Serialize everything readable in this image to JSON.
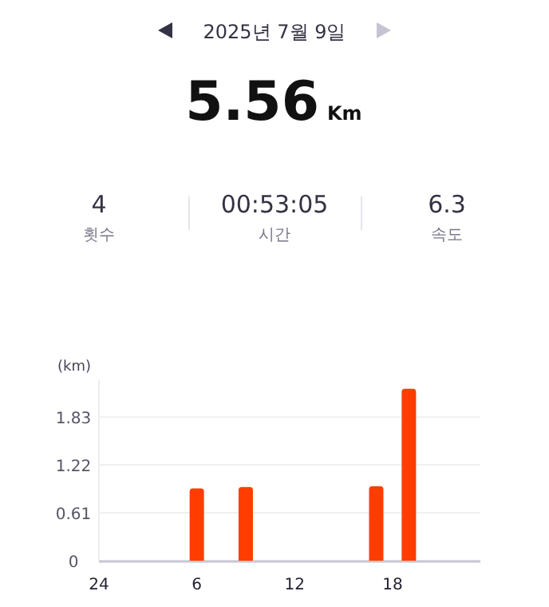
{
  "chart_data": {
    "type": "bar",
    "title": "2025년 7월 9일",
    "subtitle": "5.56",
    "annotations": [
      "Km",
      "4",
      "횟수",
      "00:53:05",
      "시간",
      "6.3",
      "속도"
    ],
    "ylabel": "(km)",
    "categories": [
      "24",
      null,
      null,
      null,
      null,
      null,
      "6",
      null,
      null,
      null,
      null,
      null,
      "12",
      null,
      null,
      null,
      null,
      null,
      "18",
      null,
      null,
      null,
      null,
      null
    ],
    "values": [
      0,
      0,
      0,
      0,
      0,
      0,
      0.92,
      0,
      0,
      0.94,
      0,
      0,
      0,
      0,
      0,
      0,
      0,
      0.95,
      0,
      2.19,
      0,
      0,
      0,
      0
    ],
    "color": "#ff3d00",
    "ylim": [
      0,
      2.3
    ],
    "yticks": [
      0,
      0.61,
      1.22,
      1.83
    ],
    "grid": "y"
  }
}
